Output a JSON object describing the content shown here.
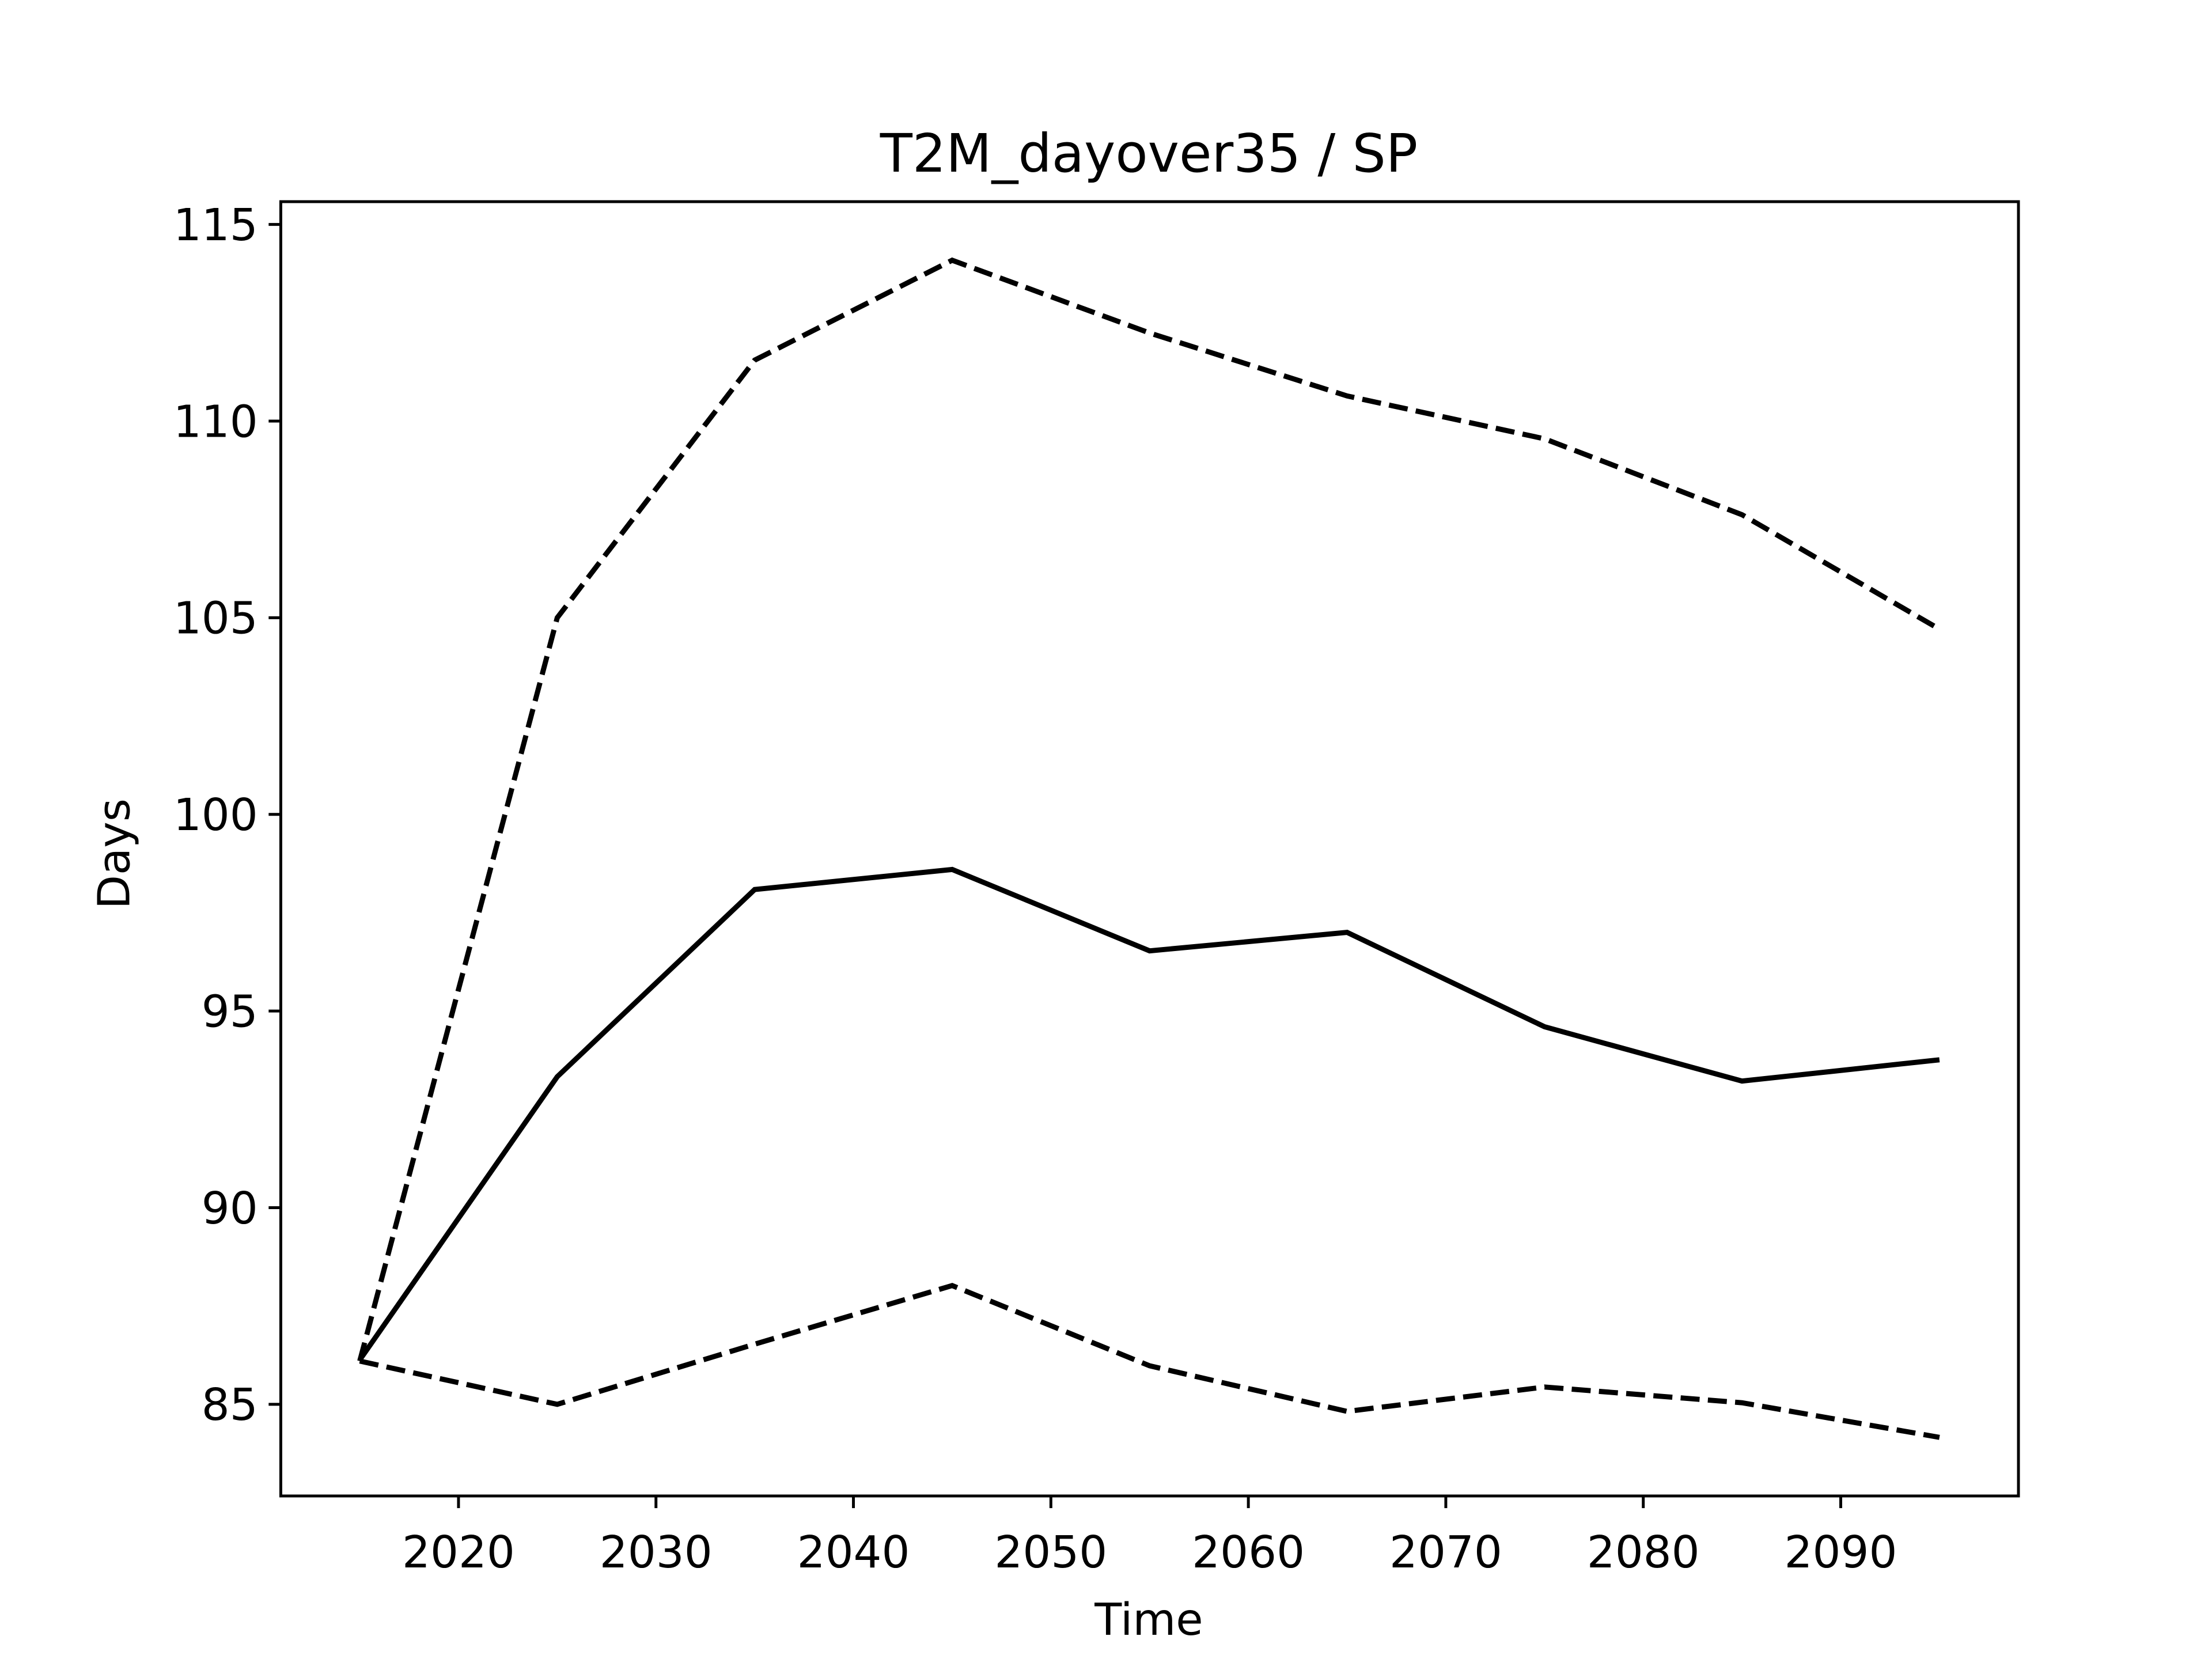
{
  "chart_data": {
    "type": "line",
    "title": "T2M_dayover35 / SP",
    "xlabel": "Time",
    "ylabel": "Days",
    "x": [
      2015,
      2025,
      2035,
      2045,
      2055,
      2065,
      2075,
      2085,
      2095
    ],
    "series": [
      {
        "color": "#000000",
        "linestyle": "solid",
        "values": [
          86.13,
          93.33,
          98.09,
          98.6,
          96.53,
          97.0,
          94.6,
          93.22,
          93.76
        ]
      },
      {
        "color": "#000000",
        "linestyle": "dashed",
        "values": [
          86.1,
          105.0,
          111.55,
          114.09,
          112.24,
          110.64,
          109.55,
          107.62,
          104.71
        ]
      },
      {
        "color": "#000000",
        "linestyle": "dashed",
        "values": [
          86.1,
          85.0,
          86.53,
          88.02,
          85.98,
          84.82,
          85.44,
          85.04,
          84.16
        ]
      }
    ],
    "xlim": [
      2011,
      2099
    ],
    "xticks": [
      2020,
      2030,
      2040,
      2050,
      2060,
      2070,
      2080,
      2090
    ],
    "ylim": [
      82.67,
      115.58
    ],
    "yticks": [
      85,
      90,
      95,
      100,
      105,
      110,
      115
    ],
    "grid": false
  }
}
